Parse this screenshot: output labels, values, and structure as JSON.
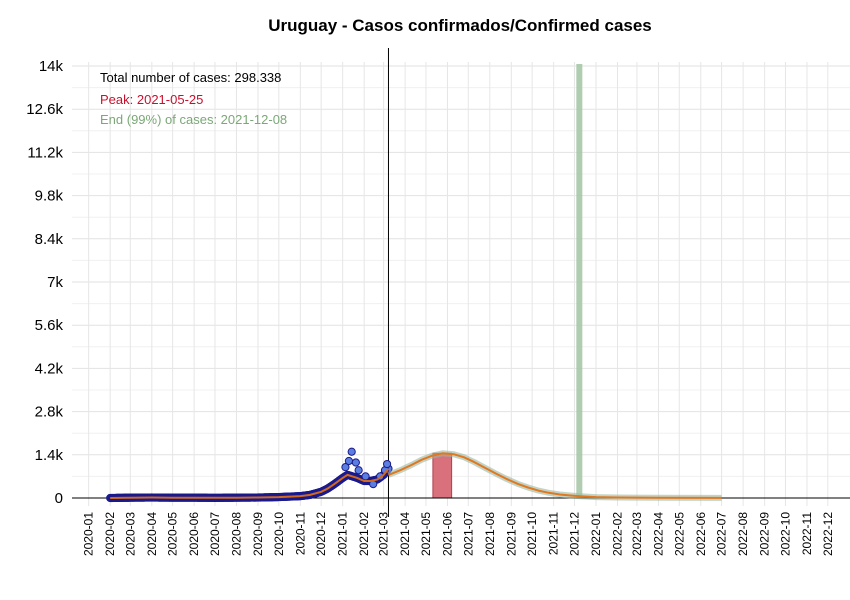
{
  "chart_data": {
    "type": "line",
    "title": "Uruguay - Casos confirmados/Confirmed cases",
    "xlabel": "",
    "ylabel": "",
    "ylim": [
      0,
      14000
    ],
    "yticks": [
      0,
      1400,
      2800,
      4200,
      5600,
      7000,
      8400,
      9800,
      11200,
      12600,
      14000
    ],
    "ytick_labels": [
      "0",
      "1.4k",
      "2.8k",
      "4.2k",
      "5.6k",
      "7k",
      "8.4k",
      "9.8k",
      "11.2k",
      "12.6k",
      "14k"
    ],
    "xlim": [
      "2019-12-08",
      "2023-01-02"
    ],
    "xtick_labels": [
      "2020-01",
      "2020-02",
      "2020-03",
      "2020-04",
      "2020-05",
      "2020-06",
      "2020-07",
      "2020-08",
      "2020-09",
      "2020-10",
      "2020-11",
      "2020-12",
      "2021-01",
      "2021-02",
      "2021-03",
      "2021-04",
      "2021-05",
      "2021-06",
      "2021-07",
      "2021-08",
      "2021-09",
      "2021-10",
      "2021-11",
      "2021-12",
      "2022-01",
      "2022-02",
      "2022-03",
      "2022-04",
      "2022-05",
      "2022-06",
      "2022-07",
      "2022-08",
      "2022-09",
      "2022-10",
      "2022-11",
      "2022-12"
    ],
    "grid": true,
    "annotations": {
      "total": "Total number of cases: 298.338",
      "peak": "Peak: 2021-05-25",
      "end": "End (99%) of cases: 2021-12-08"
    },
    "last_data_date": "2021-03-08",
    "peak_date": "2021-05-25",
    "peak_band": [
      "2021-05-11",
      "2021-06-07"
    ],
    "peak_value": 1450,
    "end_date": "2021-12-08",
    "colors": {
      "observed_points": "#5b7fe0",
      "observed_edge": "#1a1a8c",
      "observed_fit": "#d2691e",
      "fit_curve": "#e07820",
      "fit_band": "#9bb8a0",
      "peak_bar": "#d9717c",
      "end_line": "#a8c8a8",
      "total_text": "#000000",
      "peak_text": "#c8102e",
      "end_text": "#7aa876"
    },
    "observed_series": {
      "name": "",
      "x": [
        "2020-02-01",
        "2020-03-01",
        "2020-04-01",
        "2020-05-01",
        "2020-06-01",
        "2020-07-01",
        "2020-08-01",
        "2020-09-01",
        "2020-10-01",
        "2020-11-01",
        "2020-11-15",
        "2020-12-01",
        "2020-12-10",
        "2020-12-20",
        "2021-01-01",
        "2021-01-08",
        "2021-01-15",
        "2021-01-22",
        "2021-02-01",
        "2021-02-10",
        "2021-02-20",
        "2021-03-01",
        "2021-03-08"
      ],
      "y": [
        0,
        10,
        15,
        10,
        10,
        5,
        10,
        15,
        30,
        60,
        100,
        200,
        300,
        450,
        650,
        750,
        700,
        650,
        550,
        550,
        600,
        750,
        950
      ]
    },
    "observed_scatter_extra": {
      "x": [
        "2021-01-05",
        "2021-01-10",
        "2021-01-14",
        "2021-01-20",
        "2021-01-24",
        "2021-02-03",
        "2021-02-14",
        "2021-02-24",
        "2021-03-03",
        "2021-03-06"
      ],
      "y": [
        1000,
        1200,
        1500,
        1150,
        900,
        700,
        450,
        700,
        900,
        1100
      ]
    },
    "fit_series": {
      "name": "",
      "x": [
        "2021-03-08",
        "2021-03-25",
        "2021-04-10",
        "2021-04-25",
        "2021-05-10",
        "2021-05-25",
        "2021-06-10",
        "2021-06-25",
        "2021-07-10",
        "2021-07-25",
        "2021-08-10",
        "2021-08-25",
        "2021-09-10",
        "2021-09-25",
        "2021-10-10",
        "2021-10-25",
        "2021-11-10",
        "2021-11-25",
        "2021-12-10",
        "2022-01-01",
        "2022-02-01",
        "2022-04-01",
        "2022-07-01"
      ],
      "y": [
        750,
        900,
        1070,
        1240,
        1370,
        1450,
        1420,
        1320,
        1160,
        980,
        790,
        620,
        460,
        340,
        240,
        170,
        115,
        80,
        55,
        30,
        15,
        5,
        2
      ]
    }
  }
}
